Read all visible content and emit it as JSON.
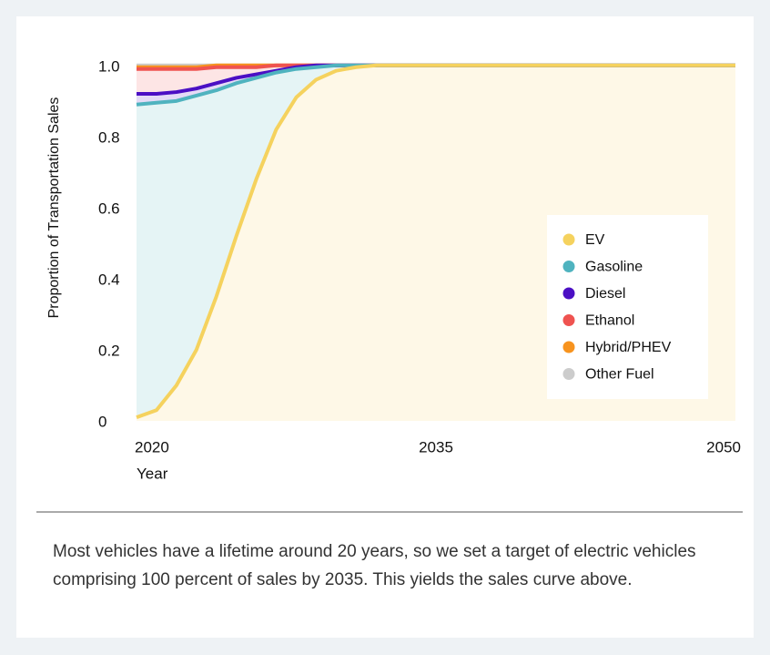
{
  "chart_data": {
    "type": "stacked_area",
    "x": [
      2020,
      2021,
      2022,
      2023,
      2024,
      2025,
      2026,
      2027,
      2028,
      2029,
      2030,
      2031,
      2032,
      2033,
      2034,
      2035,
      2050
    ],
    "series": [
      {
        "name": "EV",
        "color": "#f5d25e",
        "values": [
          0.01,
          0.03,
          0.1,
          0.2,
          0.35,
          0.52,
          0.68,
          0.82,
          0.91,
          0.96,
          0.985,
          0.995,
          1.0,
          1.0,
          1.0,
          1.0,
          1.0
        ]
      },
      {
        "name": "Gasoline",
        "color": "#4fb3bf",
        "values": [
          0.88,
          0.865,
          0.8,
          0.715,
          0.58,
          0.43,
          0.285,
          0.16,
          0.08,
          0.035,
          0.015,
          0.005,
          0,
          0,
          0,
          0,
          0
        ]
      },
      {
        "name": "Diesel",
        "color": "#4b0fc4",
        "values": [
          0.03,
          0.025,
          0.025,
          0.02,
          0.02,
          0.015,
          0.01,
          0.005,
          0.005,
          0.005,
          0,
          0,
          0,
          0,
          0,
          0,
          0
        ]
      },
      {
        "name": "Ethanol",
        "color": "#ef5350",
        "values": [
          0.07,
          0.07,
          0.065,
          0.055,
          0.045,
          0.03,
          0.02,
          0.015,
          0.005,
          0,
          0,
          0,
          0,
          0,
          0,
          0,
          0
        ]
      },
      {
        "name": "Hybrid/PHEV",
        "color": "#f7931e",
        "values": [
          0.005,
          0.005,
          0.005,
          0.005,
          0.005,
          0.005,
          0.005,
          0,
          0,
          0,
          0,
          0,
          0,
          0,
          0,
          0,
          0
        ]
      },
      {
        "name": "Other Fuel",
        "color": "#cccccc",
        "values": [
          0.005,
          0.005,
          0.005,
          0.005,
          0,
          0,
          0,
          0,
          0,
          0,
          0,
          0,
          0,
          0,
          0,
          0,
          0
        ]
      }
    ],
    "xlim": [
      2020,
      2050
    ],
    "xticks": [
      2020,
      2035,
      2050
    ],
    "ylim": [
      0,
      1.02
    ],
    "yticks": [
      0,
      0.2,
      0.4,
      0.6,
      0.8,
      {
        "value": 1.0,
        "label": "1.0"
      }
    ],
    "xlabel": "Year",
    "ylabel": "Proportion of Transportation Sales",
    "legend": "right",
    "caption": "Most vehicles have a lifetime around 20 years, so we set a target of electric vehicles comprising 100 percent of sales by 2035. This yields the sales curve above."
  }
}
